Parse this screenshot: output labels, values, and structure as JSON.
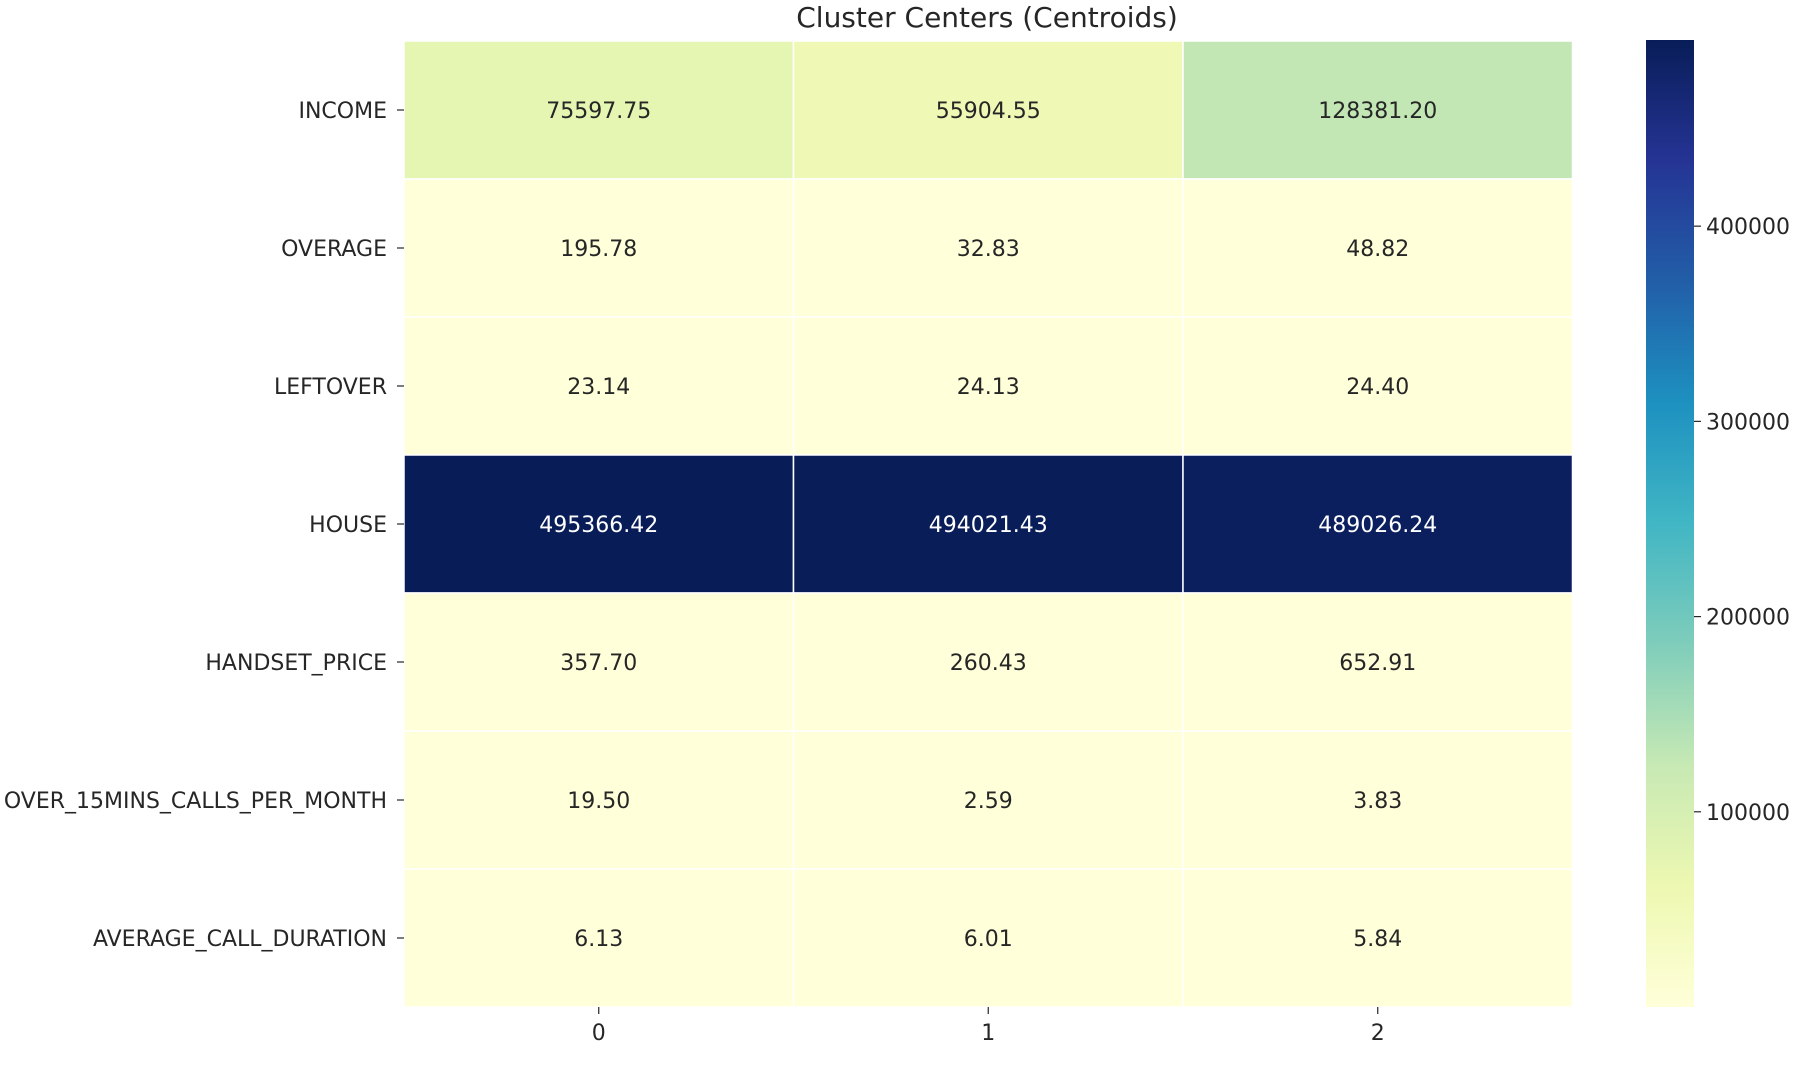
{
  "chart_data": {
    "type": "heatmap",
    "title": "Cluster Centers (Centroids)",
    "xlabel": "",
    "ylabel": "",
    "columns": [
      "0",
      "1",
      "2"
    ],
    "rows": [
      "INCOME",
      "OVERAGE",
      "LEFTOVER",
      "HOUSE",
      "HANDSET_PRICE",
      "OVER_15MINS_CALLS_PER_MONTH",
      "AVERAGE_CALL_DURATION"
    ],
    "values": [
      [
        75597.75,
        55904.55,
        128381.2
      ],
      [
        195.78,
        32.83,
        48.82
      ],
      [
        23.14,
        24.13,
        24.4
      ],
      [
        495366.42,
        494021.43,
        489026.24
      ],
      [
        357.7,
        260.43,
        652.91
      ],
      [
        19.5,
        2.59,
        3.83
      ],
      [
        6.13,
        6.01,
        5.84
      ]
    ],
    "labels": [
      [
        "75597.75",
        "55904.55",
        "128381.20"
      ],
      [
        "195.78",
        "32.83",
        "48.82"
      ],
      [
        "23.14",
        "24.13",
        "24.40"
      ],
      [
        "495366.42",
        "494021.43",
        "489026.24"
      ],
      [
        "357.70",
        "260.43",
        "652.91"
      ],
      [
        "19.50",
        "2.59",
        "3.83"
      ],
      [
        "6.13",
        "6.01",
        "5.84"
      ]
    ],
    "colormap": "YlGnBu",
    "color_range": [
      5.84,
      495366.42
    ],
    "colorbar_ticks": [
      100000,
      200000,
      300000,
      400000
    ],
    "colorbar_tick_labels": [
      "100000",
      "200000",
      "300000",
      "400000"
    ],
    "grid": false,
    "cell_borders": "#ffffff"
  }
}
